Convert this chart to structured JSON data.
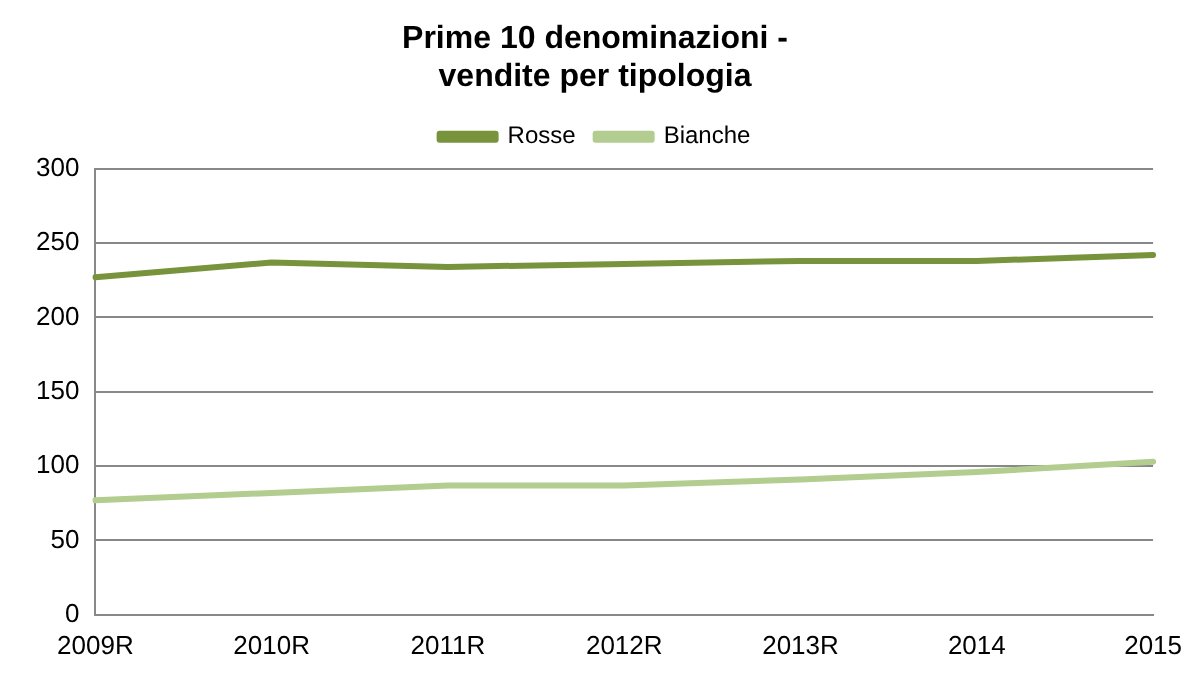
{
  "chart_data": {
    "type": "line",
    "title": [
      "Prime 10 denominazioni -",
      "vendite per tipologia"
    ],
    "categories": [
      "2009R",
      "2010R",
      "2011R",
      "2012R",
      "2013R",
      "2014",
      "2015"
    ],
    "series": [
      {
        "name": "Rosse",
        "color": "#77933c",
        "values": [
          227,
          237,
          234,
          236,
          238,
          238,
          242
        ]
      },
      {
        "name": "Bianche",
        "color": "#b3cc8f",
        "values": [
          77,
          82,
          87,
          87,
          91,
          96,
          103
        ]
      }
    ],
    "ylim": [
      0,
      300
    ],
    "yticks": [
      0,
      50,
      100,
      150,
      200,
      250,
      300
    ],
    "grid": "y",
    "legend": "top",
    "marker": "none",
    "line_style": "solid"
  }
}
